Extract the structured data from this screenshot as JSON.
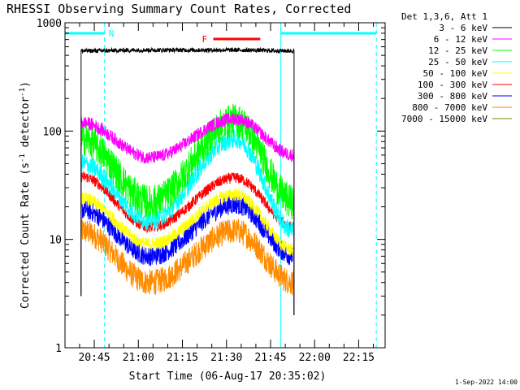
{
  "chart_data": {
    "type": "line",
    "title": "RHESSI Observing Summary Count Rates, Corrected",
    "xlabel": "Start Time (06-Aug-17 20:35:02)",
    "ylabel_main": "Corrected Count Rate (s",
    "ylabel_sup1": "-1",
    "ylabel_mid": " detector",
    "ylabel_sup2": "-1",
    "ylabel_end": ")",
    "yscale": "log",
    "ylim": [
      1,
      1000
    ],
    "y_tick_labels": [
      "1",
      "10",
      "100",
      "1000"
    ],
    "x_tick_labels": [
      "20:45",
      "21:00",
      "21:15",
      "21:30",
      "21:45",
      "22:00",
      "22:15"
    ],
    "x_tick_minutes": [
      45,
      60,
      75,
      90,
      105,
      120,
      135
    ],
    "xlim_minutes": [
      35.03,
      144
    ],
    "legend_header": "Det 1,3,6, Att 1",
    "series": [
      {
        "name": "3 - 6 keV",
        "color": "#000000",
        "start": 550,
        "trough": 560,
        "peak": 560,
        "end": 550,
        "noise": 0.02
      },
      {
        "name": "6 - 12 keV",
        "color": "#ff00ff",
        "start": 120,
        "trough": 57,
        "peak": 130,
        "end": 60,
        "noise": 0.06
      },
      {
        "name": "12 - 25 keV",
        "color": "#00ff00",
        "start": 85,
        "trough": 22,
        "peak": 125,
        "end": 22,
        "noise": 0.16
      },
      {
        "name": "25 - 50 keV",
        "color": "#00ffff",
        "start": 50,
        "trough": 15,
        "peak": 85,
        "end": 12,
        "noise": 0.09
      },
      {
        "name": "50 - 100 keV",
        "color": "#ffff00",
        "start": 24,
        "trough": 9,
        "peak": 26,
        "end": 8,
        "noise": 0.06
      },
      {
        "name": "100 - 300 keV",
        "color": "#ff0000",
        "start": 38,
        "trough": 13,
        "peak": 37,
        "end": 13,
        "noise": 0.05
      },
      {
        "name": "300 - 800 keV",
        "color": "#0000ff",
        "start": 19,
        "trough": 7,
        "peak": 21,
        "end": 7,
        "noise": 0.09
      },
      {
        "name": "800 - 7000 keV",
        "color": "#ff8c00",
        "start": 12,
        "trough": 4,
        "peak": 12,
        "end": 4,
        "noise": 0.12
      },
      {
        "name": "7000 - 15000 keV",
        "color": "#808000",
        "start": 0,
        "trough": 0,
        "peak": 0,
        "end": 0,
        "noise": 0
      }
    ],
    "data_start_minutes": 40.5,
    "data_end_minutes": 113,
    "trough_minutes": 64,
    "peak_minutes": 93,
    "night_marker_label": "N",
    "night_intervals_minutes": [
      [
        35.03,
        48.5
      ],
      [
        108.5,
        141
      ]
    ],
    "flare_marker_label": "F",
    "flare_interval_minutes": [
      85.5,
      101.5
    ],
    "footer_date": "1-Sep-2022 14:00"
  }
}
